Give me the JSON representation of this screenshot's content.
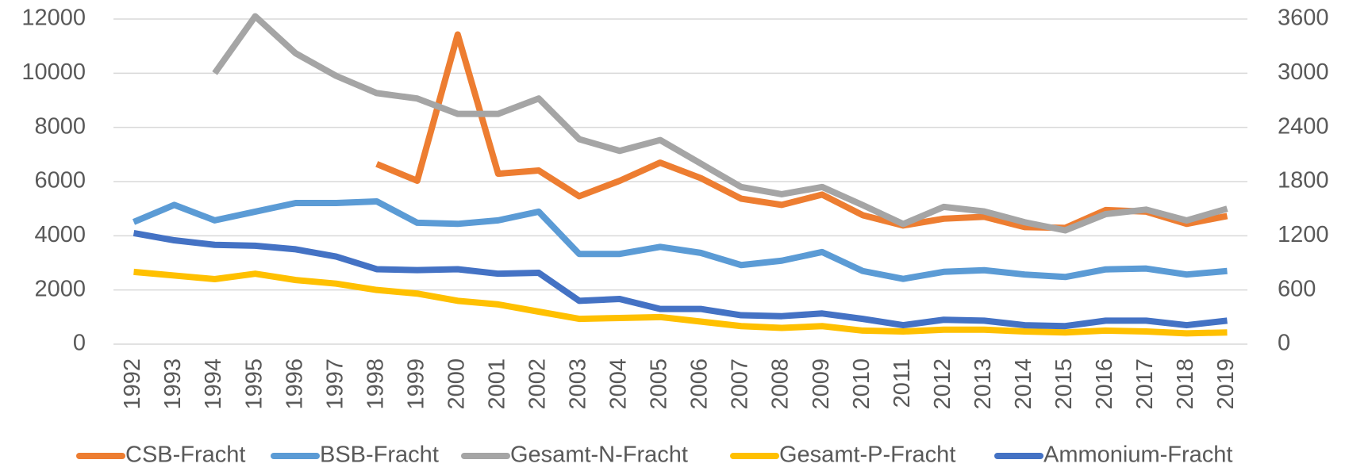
{
  "chart_data": {
    "type": "line",
    "categories": [
      "1992",
      "1993",
      "1994",
      "1995",
      "1996",
      "1997",
      "1998",
      "1999",
      "2000",
      "2001",
      "2002",
      "2003",
      "2004",
      "2005",
      "2006",
      "2007",
      "2008",
      "2009",
      "2010",
      "2011",
      "2012",
      "2013",
      "2014",
      "2015",
      "2016",
      "2017",
      "2018",
      "2019"
    ],
    "series": [
      {
        "name": "CSB-Fracht",
        "color": "#ed7d31",
        "values": [
          null,
          null,
          null,
          null,
          null,
          null,
          6650,
          6030,
          11430,
          6290,
          6410,
          5460,
          6030,
          6700,
          6130,
          5370,
          5140,
          5520,
          4760,
          4380,
          4630,
          4700,
          4320,
          4290,
          4950,
          4890,
          4440,
          4730
        ]
      },
      {
        "name": "BSB-Fracht",
        "color": "#5b9bd5",
        "values": [
          4510,
          5140,
          4570,
          4890,
          5210,
          5210,
          5270,
          4480,
          4440,
          4570,
          4890,
          3330,
          3330,
          3590,
          3370,
          2920,
          3080,
          3400,
          2700,
          2410,
          2670,
          2730,
          2570,
          2480,
          2760,
          2790,
          2570,
          2700
        ]
      },
      {
        "name": "Gesamt-N-Fracht",
        "color": "#a5a5a5",
        "axis": "y2",
        "values": [
          null,
          null,
          3000,
          3630,
          3220,
          2970,
          2780,
          2720,
          2550,
          2550,
          2720,
          2270,
          2140,
          2260,
          2000,
          1740,
          1660,
          1740,
          1540,
          1330,
          1520,
          1470,
          1350,
          1260,
          1440,
          1490,
          1370,
          1500
        ]
      },
      {
        "name": "Gesamt-P-Fracht",
        "color": "#ffc000",
        "axis": "y2",
        "values": [
          800,
          760,
          720,
          780,
          710,
          670,
          600,
          560,
          480,
          440,
          360,
          280,
          290,
          300,
          250,
          200,
          180,
          200,
          150,
          140,
          160,
          160,
          140,
          130,
          150,
          140,
          120,
          130
        ]
      },
      {
        "name": "Ammonium-Fracht",
        "color": "#4472c4",
        "axis": "y2",
        "values": [
          1230,
          1150,
          1100,
          1090,
          1050,
          970,
          830,
          820,
          830,
          780,
          790,
          480,
          500,
          390,
          390,
          320,
          310,
          340,
          280,
          210,
          270,
          260,
          210,
          200,
          260,
          260,
          210,
          260
        ]
      }
    ],
    "ylim": [
      0,
      12000
    ],
    "yticks": [
      0,
      2000,
      4000,
      6000,
      8000,
      10000,
      12000
    ],
    "y2lim": [
      0,
      3600
    ],
    "y2ticks": [
      0,
      600,
      1200,
      1800,
      2400,
      3000,
      3600
    ],
    "grid": true,
    "legend": "bottom"
  }
}
